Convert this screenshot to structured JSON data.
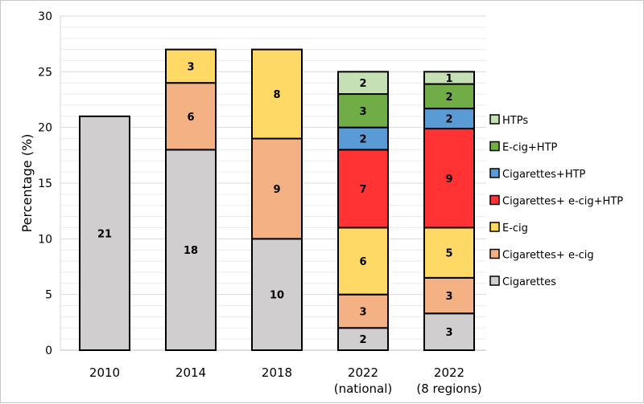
{
  "chart_data": {
    "type": "bar",
    "stacked": true,
    "title": "",
    "xlabel": "",
    "ylabel": "Percentage (%)",
    "ylim": [
      0,
      30
    ],
    "yticks": [
      0,
      5,
      10,
      15,
      20,
      25,
      30
    ],
    "grid": "horizontal",
    "legend_position": "right",
    "categories": [
      [
        "2010"
      ],
      [
        "2014"
      ],
      [
        "2018"
      ],
      [
        "2022",
        "(national)"
      ],
      [
        "2022",
        "(8 regions)"
      ]
    ],
    "series": [
      {
        "name": "Cigarettes",
        "color": "#d0cece",
        "values": [
          21,
          18,
          10,
          2,
          3.3
        ],
        "labels": [
          "21",
          "18",
          "10",
          "2",
          "3"
        ]
      },
      {
        "name": "Cigarettes+ e-cig",
        "color": "#f4b183",
        "values": [
          0,
          6,
          9,
          3,
          3.2
        ],
        "labels": [
          "",
          "6",
          "9",
          "3",
          "3"
        ]
      },
      {
        "name": "E-cig",
        "color": "#ffd966",
        "values": [
          0,
          3,
          8,
          6,
          4.5
        ],
        "labels": [
          "",
          "3",
          "8",
          "6",
          "5"
        ]
      },
      {
        "name": "Cigarettes+ e-cig+HTP",
        "color": "#ff3333",
        "values": [
          0,
          0,
          0,
          7,
          8.9
        ],
        "labels": [
          "",
          "",
          "",
          "7",
          "9"
        ]
      },
      {
        "name": "Cigarettes+HTP",
        "color": "#5b9bd5",
        "values": [
          0,
          0,
          0,
          2,
          1.8
        ],
        "labels": [
          "",
          "",
          "",
          "2",
          "2"
        ]
      },
      {
        "name": "E-cig+HTP",
        "color": "#70ad47",
        "values": [
          0,
          0,
          0,
          3,
          2.2
        ],
        "labels": [
          "",
          "",
          "",
          "3",
          "2"
        ]
      },
      {
        "name": "HTPs",
        "color": "#c5e0b4",
        "values": [
          0,
          0,
          0,
          2,
          1.1
        ],
        "labels": [
          "",
          "",
          "",
          "2",
          "1"
        ]
      }
    ],
    "legend_order": [
      "HTPs",
      "E-cig+HTP",
      "Cigarettes+HTP",
      "Cigarettes+ e-cig+HTP",
      "E-cig",
      "Cigarettes+ e-cig",
      "Cigarettes"
    ]
  }
}
